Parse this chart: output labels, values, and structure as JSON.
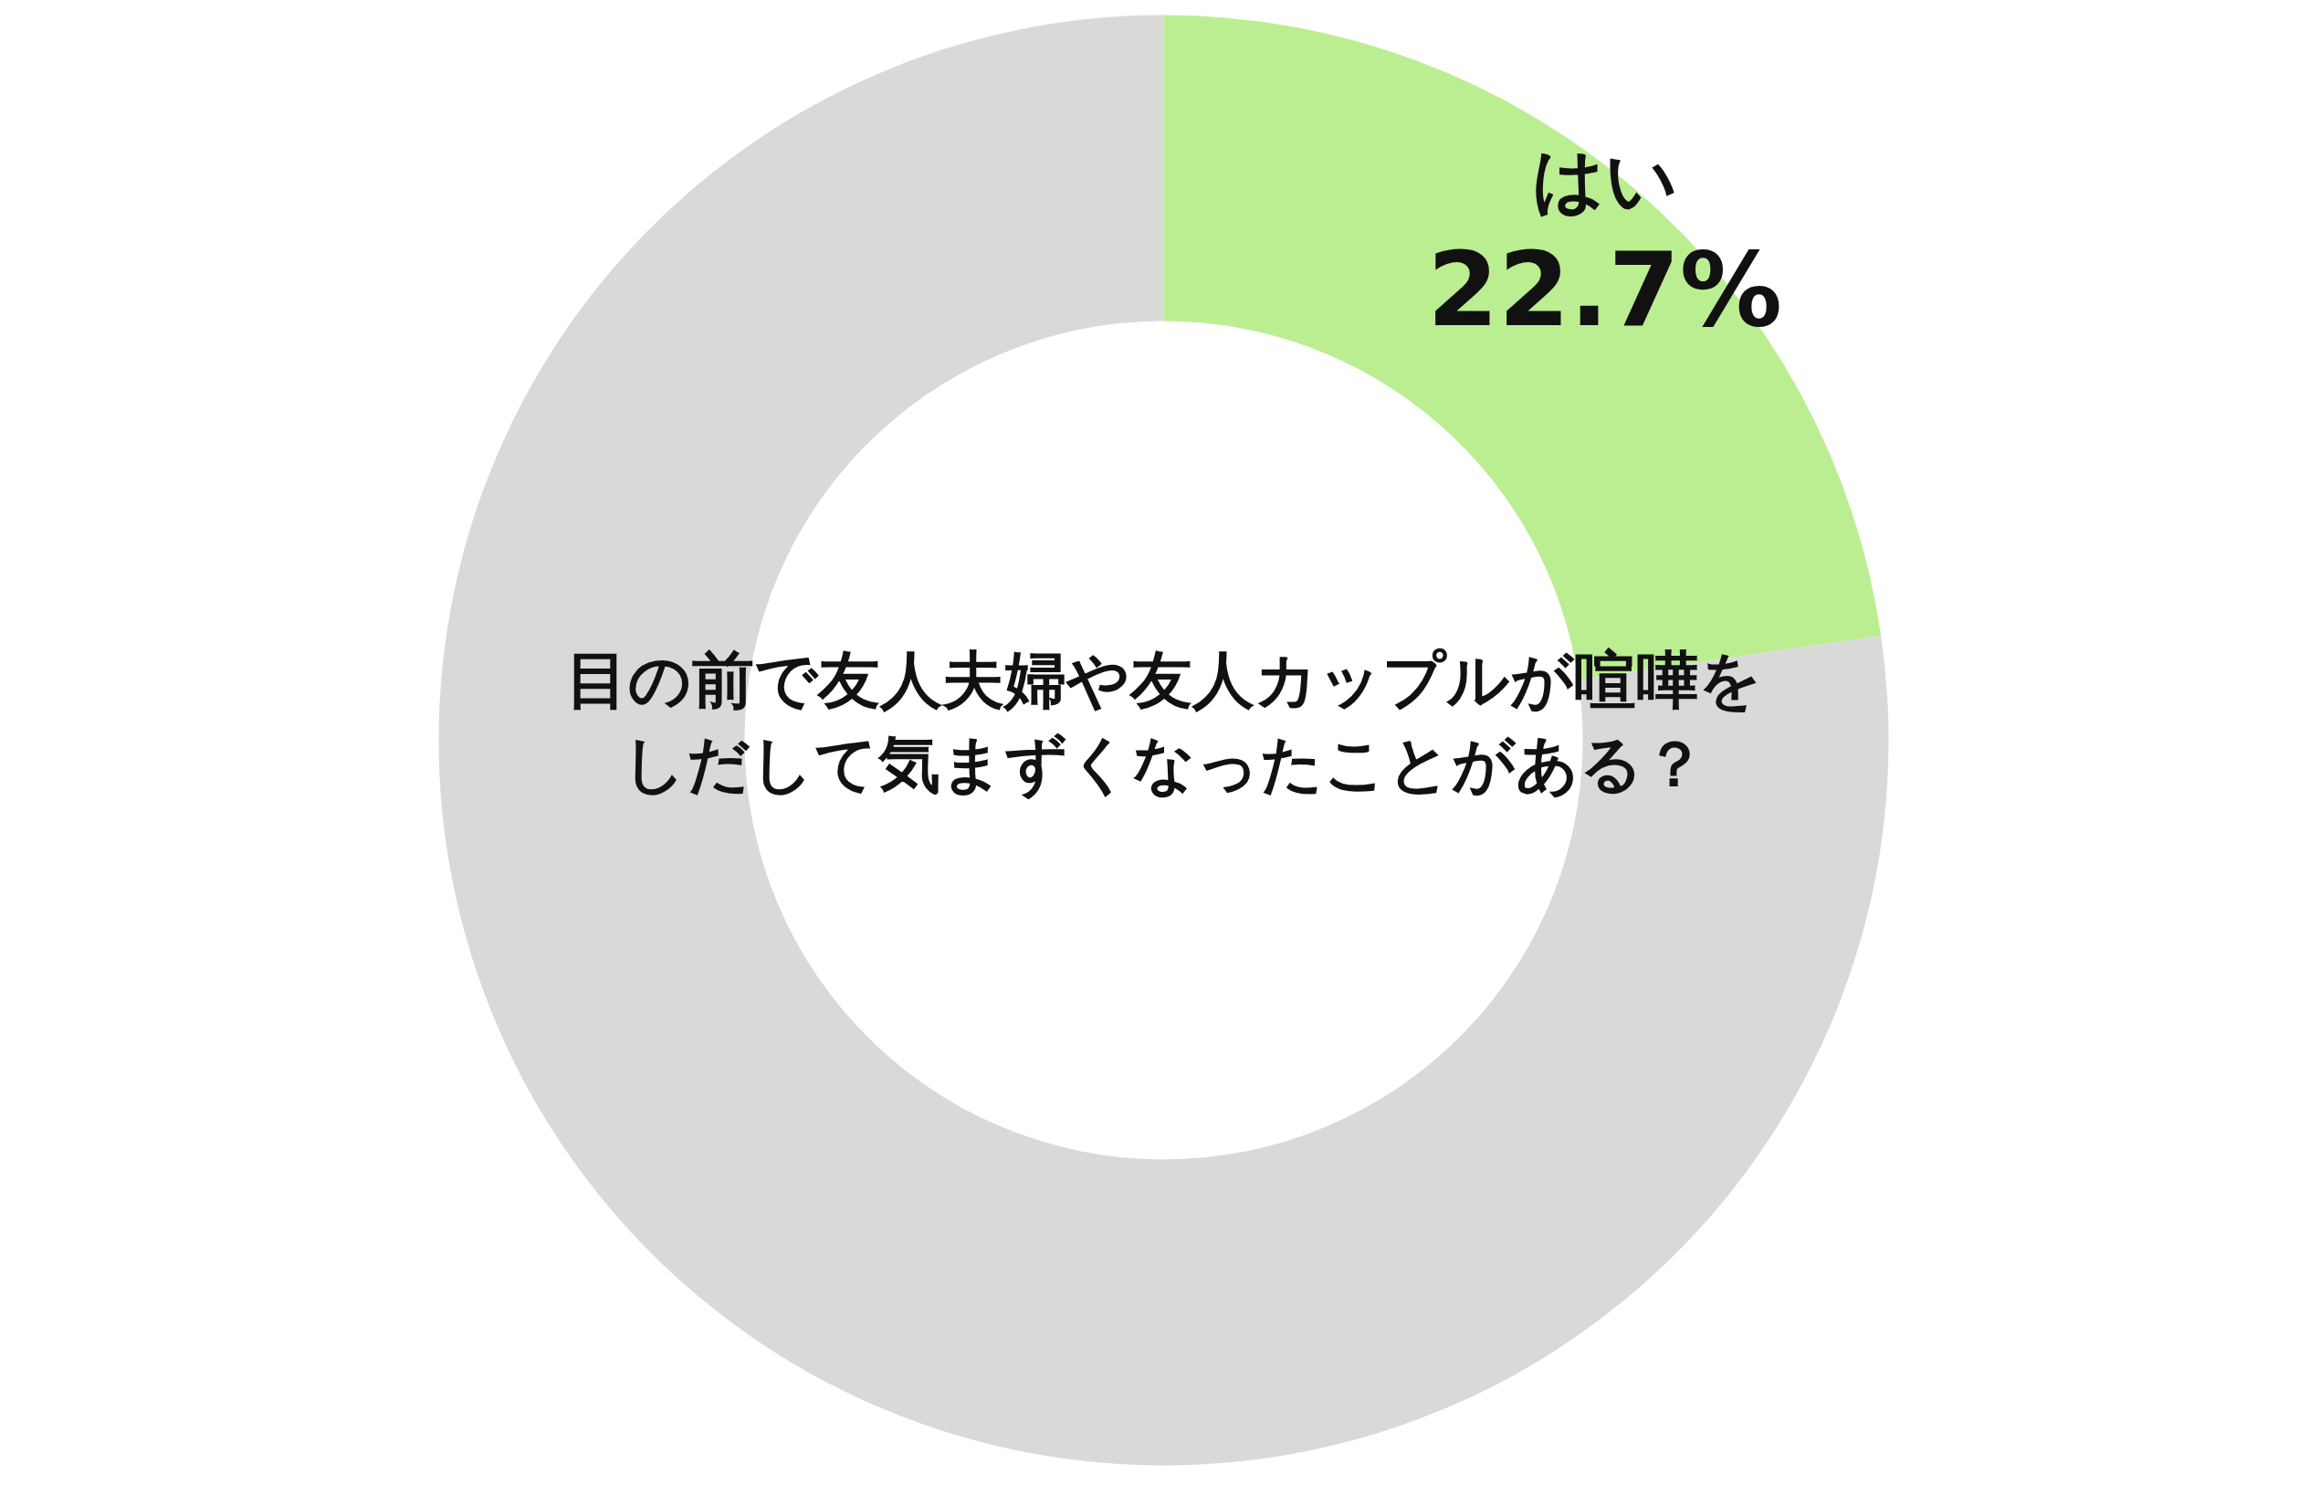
{
  "chart_data": {
    "type": "donut",
    "title": "目の前で友人夫婦や友人カップルが喧嘩をしだして気まずくなったことがある？",
    "categories": [
      "はい",
      null
    ],
    "values": [
      22.7,
      77.3
    ],
    "colors": [
      "#bbee91",
      "#d9d9d9"
    ],
    "value_labels": [
      "22.7%",
      null
    ]
  }
}
